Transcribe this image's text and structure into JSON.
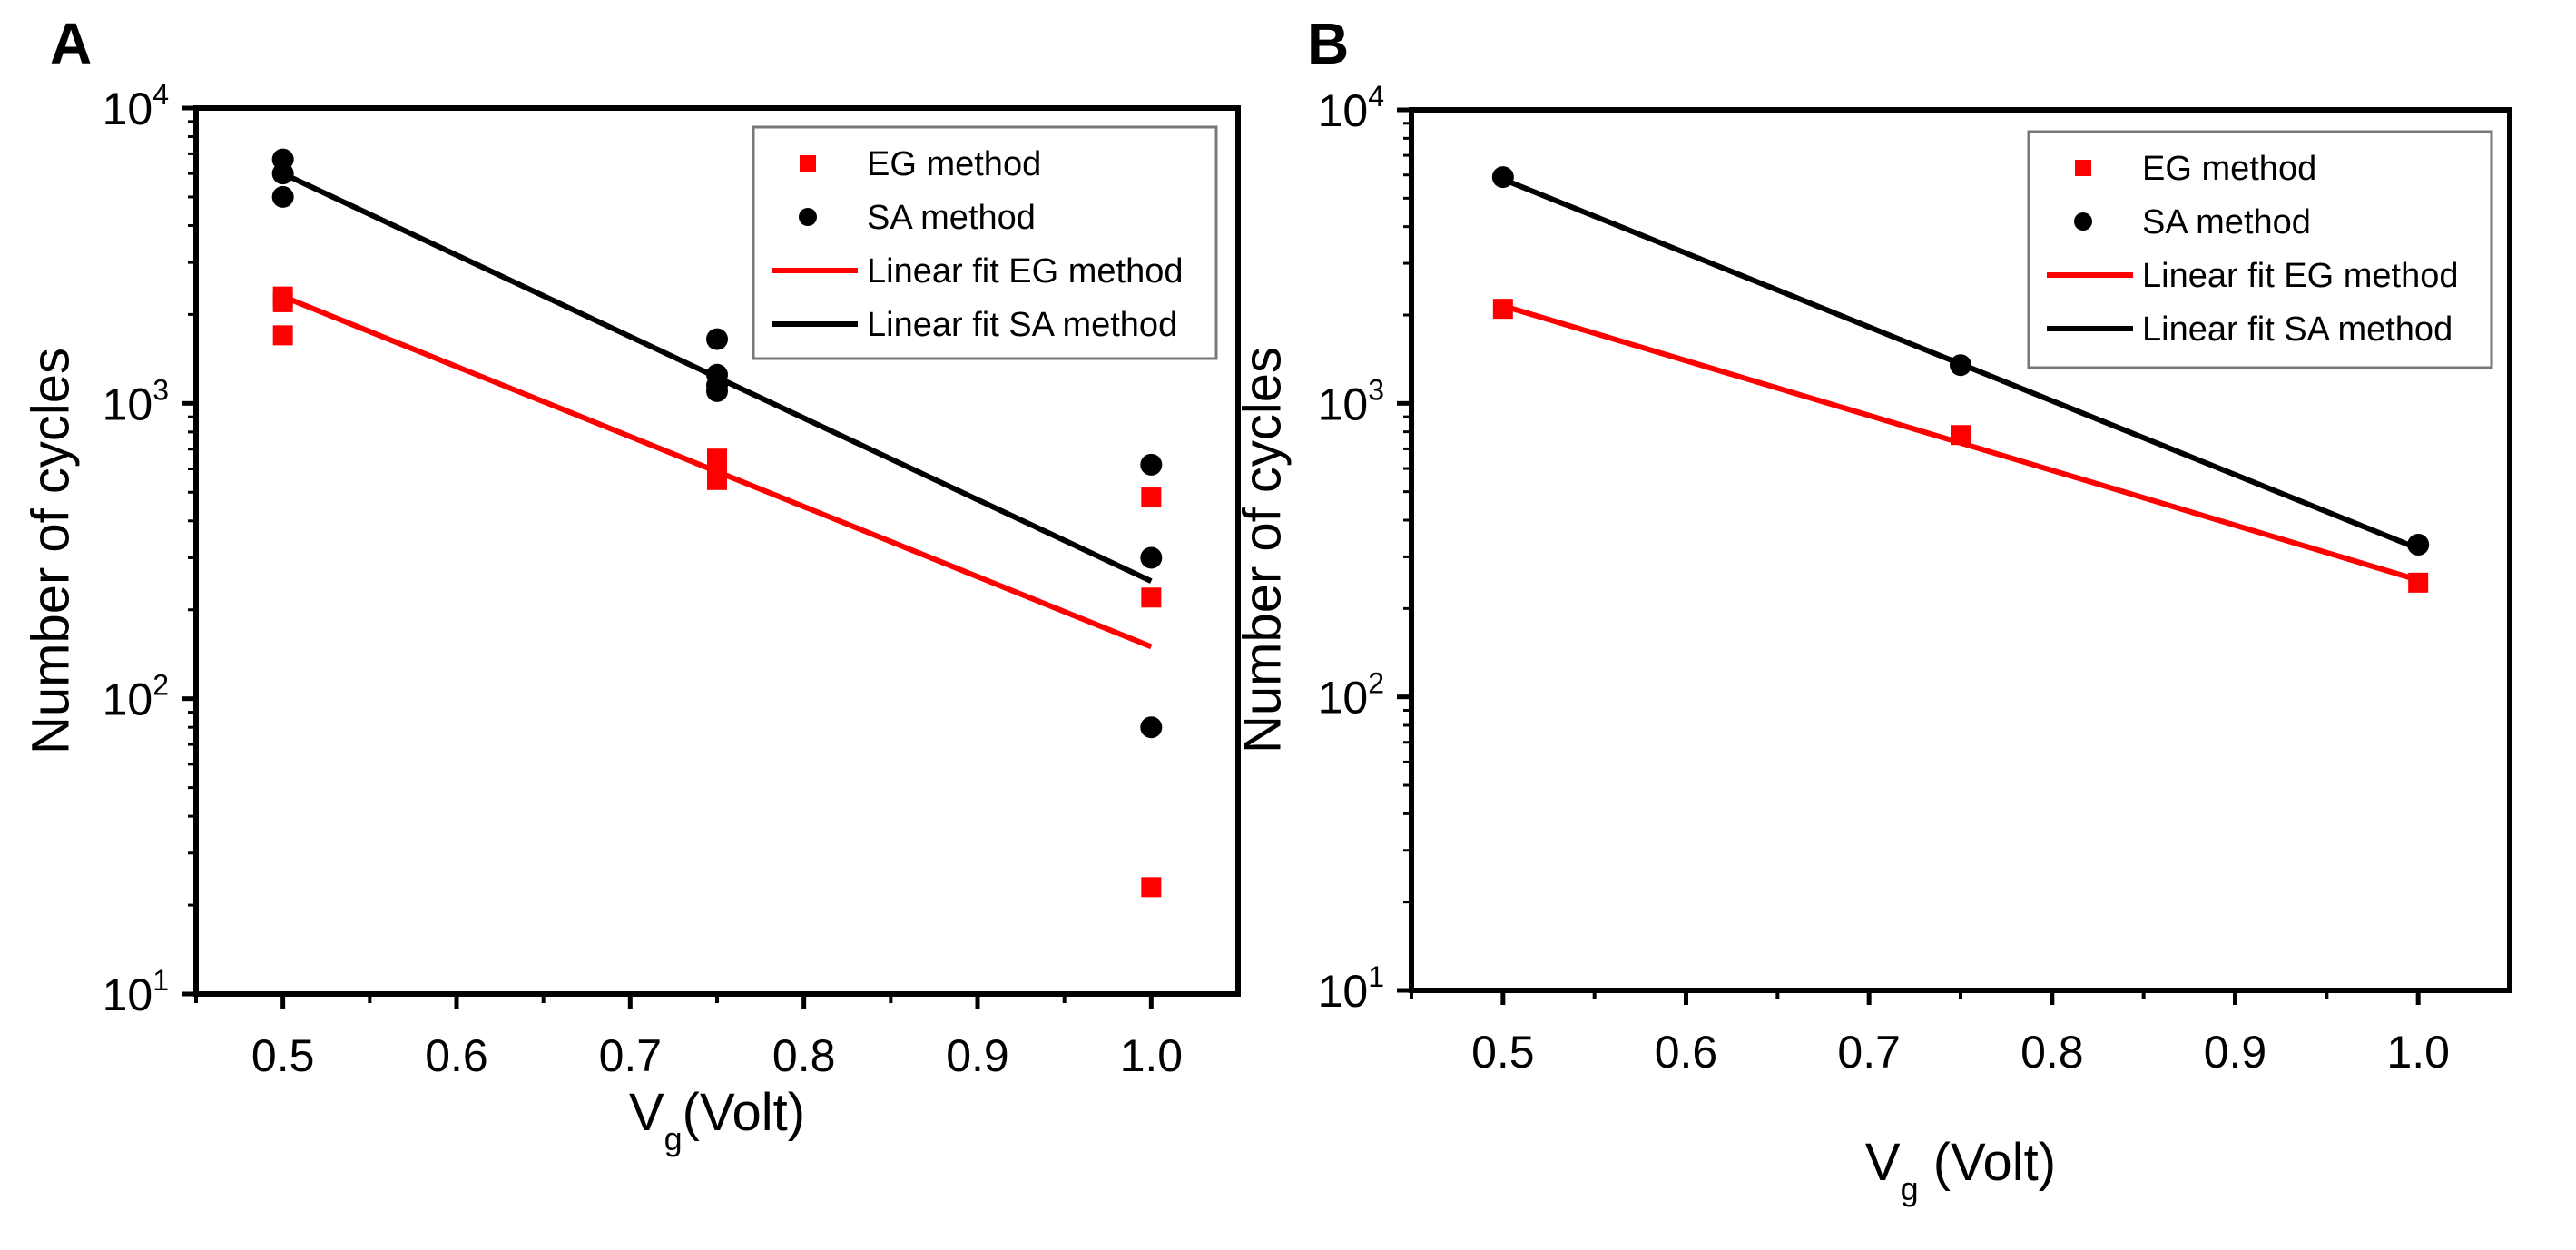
{
  "chart_data": [
    {
      "panel": "A",
      "type": "scatter",
      "xlabel": "V",
      "xlabel_sub": "g",
      "xlabel_rest": "(Volt)",
      "ylabel": "Number of cycles",
      "xlim": [
        0.45,
        1.05
      ],
      "ylim": [
        10,
        10000
      ],
      "yscale": "log",
      "xticks": [
        "0.5",
        "0.6",
        "0.7",
        "0.8",
        "0.9",
        "1.0"
      ],
      "yticks": [
        {
          "base": "10",
          "exp": "1"
        },
        {
          "base": "10",
          "exp": "2"
        },
        {
          "base": "10",
          "exp": "3"
        },
        {
          "base": "10",
          "exp": "4"
        }
      ],
      "legend_position": "top-right",
      "series": [
        {
          "name": "EG method",
          "kind": "marker",
          "shape": "square",
          "color": "#ff0000",
          "points": [
            [
              0.5,
              2300
            ],
            [
              0.5,
              2200
            ],
            [
              0.5,
              1700
            ],
            [
              0.75,
              650
            ],
            [
              0.75,
              600
            ],
            [
              0.75,
              550
            ],
            [
              1.0,
              480
            ],
            [
              1.0,
              220
            ],
            [
              1.0,
              23
            ]
          ]
        },
        {
          "name": "SA method",
          "kind": "marker",
          "shape": "circle",
          "color": "#000000",
          "points": [
            [
              0.5,
              6700
            ],
            [
              0.5,
              6000
            ],
            [
              0.5,
              5000
            ],
            [
              0.75,
              1650
            ],
            [
              0.75,
              1250
            ],
            [
              0.75,
              1150
            ],
            [
              0.75,
              1100
            ],
            [
              1.0,
              620
            ],
            [
              1.0,
              300
            ],
            [
              1.0,
              80
            ]
          ]
        },
        {
          "name": "Linear fit EG method",
          "kind": "line",
          "color": "#ff0000",
          "points": [
            [
              0.5,
              2300
            ],
            [
              1.0,
              150
            ]
          ]
        },
        {
          "name": "Linear fit SA method",
          "kind": "line",
          "color": "#000000",
          "points": [
            [
              0.5,
              6000
            ],
            [
              1.0,
              250
            ]
          ]
        }
      ]
    },
    {
      "panel": "B",
      "type": "scatter",
      "xlabel": "V",
      "xlabel_sub": "g",
      "xlabel_rest": " (Volt)",
      "ylabel": "Number of cycles",
      "xlim": [
        0.45,
        1.05
      ],
      "ylim": [
        10,
        10000
      ],
      "yscale": "log",
      "xticks": [
        "0.5",
        "0.6",
        "0.7",
        "0.8",
        "0.9",
        "1.0"
      ],
      "yticks": [
        {
          "base": "10",
          "exp": "1"
        },
        {
          "base": "10",
          "exp": "2"
        },
        {
          "base": "10",
          "exp": "3"
        },
        {
          "base": "10",
          "exp": "4"
        }
      ],
      "legend_position": "top-right",
      "series": [
        {
          "name": "EG method",
          "kind": "marker",
          "shape": "square",
          "color": "#ff0000",
          "points": [
            [
              0.5,
              2100
            ],
            [
              0.75,
              780
            ],
            [
              1.0,
              245
            ]
          ]
        },
        {
          "name": "SA method",
          "kind": "marker",
          "shape": "circle",
          "color": "#000000",
          "points": [
            [
              0.5,
              5900
            ],
            [
              0.75,
              1350
            ],
            [
              1.0,
              330
            ]
          ]
        },
        {
          "name": "Linear fit EG method",
          "kind": "line",
          "color": "#ff0000",
          "points": [
            [
              0.5,
              2150
            ],
            [
              1.0,
              250
            ]
          ]
        },
        {
          "name": "Linear fit SA method",
          "kind": "line",
          "color": "#000000",
          "points": [
            [
              0.5,
              5800
            ],
            [
              1.0,
              320
            ]
          ]
        }
      ]
    }
  ]
}
